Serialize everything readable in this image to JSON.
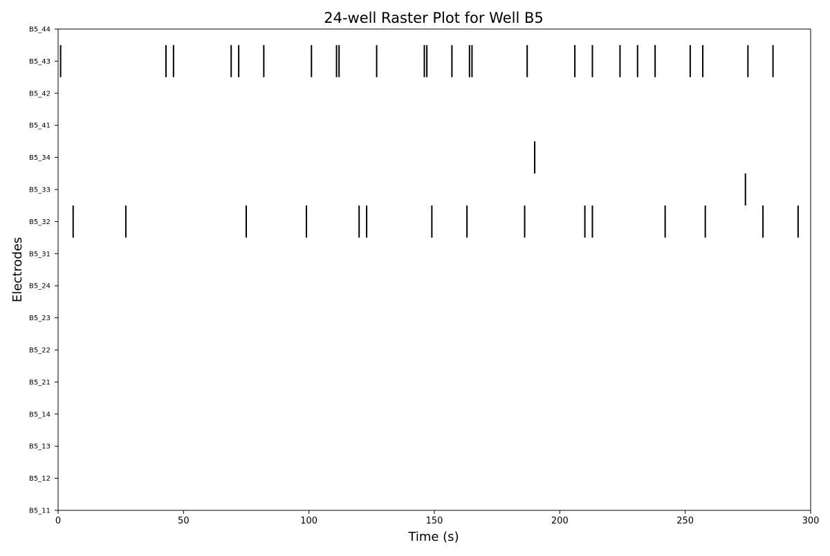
{
  "chart_data": {
    "type": "scatter",
    "title": "24-well Raster Plot for Well B5",
    "xlabel": "Time (s)",
    "ylabel": "Electrodes",
    "xlim": [
      0,
      300
    ],
    "xticks": [
      0,
      50,
      100,
      150,
      200,
      250,
      300
    ],
    "categories": [
      "B5_11",
      "B5_12",
      "B5_13",
      "B5_14",
      "B5_21",
      "B5_22",
      "B5_23",
      "B5_24",
      "B5_31",
      "B5_32",
      "B5_33",
      "B5_34",
      "B5_41",
      "B5_42",
      "B5_43",
      "B5_44"
    ],
    "grid": false,
    "series": [
      {
        "electrode": "B5_43",
        "x": [
          1,
          43,
          46,
          69,
          72,
          82,
          101,
          111,
          112,
          127,
          146,
          147,
          157,
          164,
          165,
          187,
          206,
          213,
          224,
          231,
          238,
          252,
          257,
          275,
          285
        ]
      },
      {
        "electrode": "B5_34",
        "x": [
          190
        ]
      },
      {
        "electrode": "B5_33",
        "x": [
          274
        ]
      },
      {
        "electrode": "B5_32",
        "x": [
          6,
          27,
          75,
          99,
          120,
          123,
          149,
          163,
          186,
          210,
          213,
          242,
          258,
          281,
          295
        ]
      }
    ],
    "colors": {
      "spike": "#000000",
      "axes": "#000000"
    }
  }
}
